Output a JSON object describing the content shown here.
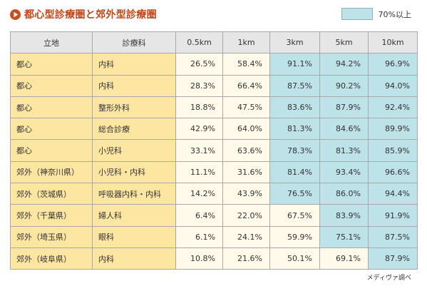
{
  "header": {
    "title": "都心型診療圏と郊外型診療圏",
    "icon": "play-circle-icon"
  },
  "legend": {
    "label": "70%以上",
    "color": "#bde2e8"
  },
  "footnote": "メディヴァ調べ",
  "colors": {
    "title": "#c0461a",
    "header_bg": "#e6e6e6",
    "label_bg": "#fde6a2",
    "value_bg": "#fffaea",
    "highlight_bg": "#bde2e8"
  },
  "chart_data": {
    "type": "table",
    "title": "都心型診療圏と郊外型診療圏",
    "threshold": 70,
    "columns": [
      "立地",
      "診療科",
      "0.5km",
      "1km",
      "3km",
      "5km",
      "10km"
    ],
    "rows": [
      {
        "location": "都心",
        "department": "内科",
        "values": [
          26.5,
          58.4,
          91.1,
          94.2,
          96.9
        ]
      },
      {
        "location": "都心",
        "department": "内科",
        "values": [
          28.3,
          66.4,
          87.5,
          90.2,
          94.0
        ]
      },
      {
        "location": "都心",
        "department": "整形外科",
        "values": [
          18.8,
          47.5,
          83.6,
          87.9,
          92.4
        ]
      },
      {
        "location": "都心",
        "department": "総合診療",
        "values": [
          42.9,
          64.0,
          81.3,
          84.6,
          89.9
        ]
      },
      {
        "location": "都心",
        "department": "小児科",
        "values": [
          33.1,
          63.6,
          78.3,
          81.3,
          85.9
        ]
      },
      {
        "location": "郊外（神奈川県）",
        "department": "小児科・内科",
        "values": [
          11.1,
          31.6,
          81.4,
          93.4,
          96.6
        ]
      },
      {
        "location": "郊外（茨城県）",
        "department": "呼吸器内科・内科",
        "values": [
          14.2,
          43.9,
          76.5,
          86.0,
          94.4
        ]
      },
      {
        "location": "郊外（千葉県）",
        "department": "婦人科",
        "values": [
          6.4,
          22.0,
          67.5,
          83.9,
          91.9
        ]
      },
      {
        "location": "郊外（埼玉県）",
        "department": "眼科",
        "values": [
          6.1,
          24.1,
          59.9,
          75.1,
          87.5
        ]
      },
      {
        "location": "郊外（岐阜県）",
        "department": "内科",
        "values": [
          10.8,
          21.6,
          50.1,
          69.1,
          87.9
        ]
      }
    ]
  }
}
